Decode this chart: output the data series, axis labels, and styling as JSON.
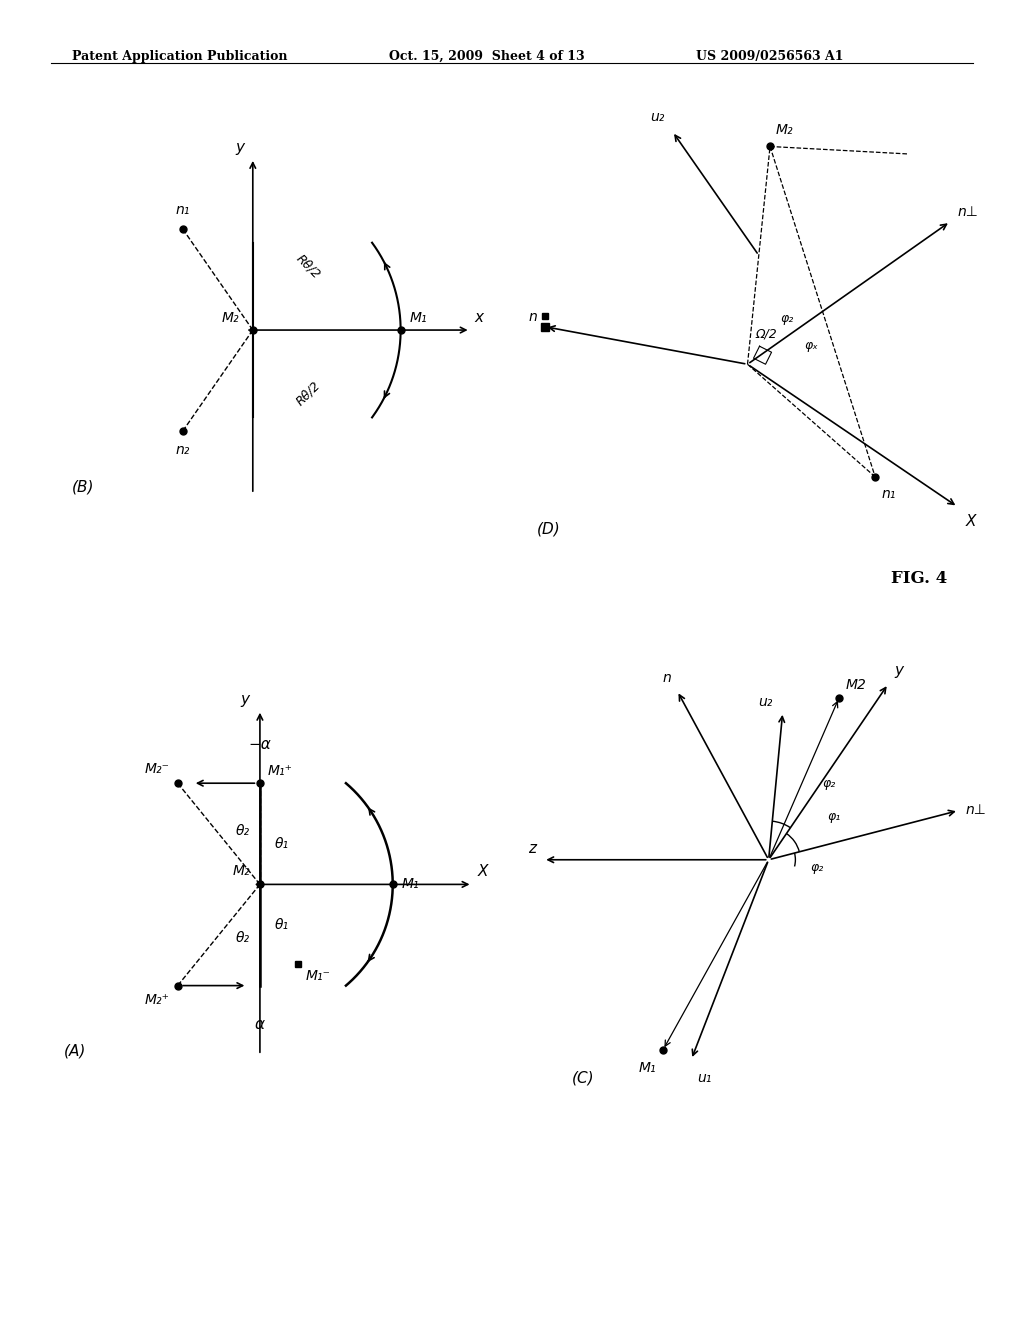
{
  "header_left": "Patent Application Publication",
  "header_mid": "Oct. 15, 2009  Sheet 4 of 13",
  "header_right": "US 2009/0256563 A1",
  "fig_label": "FIG. 4",
  "bg_color": "#ffffff"
}
